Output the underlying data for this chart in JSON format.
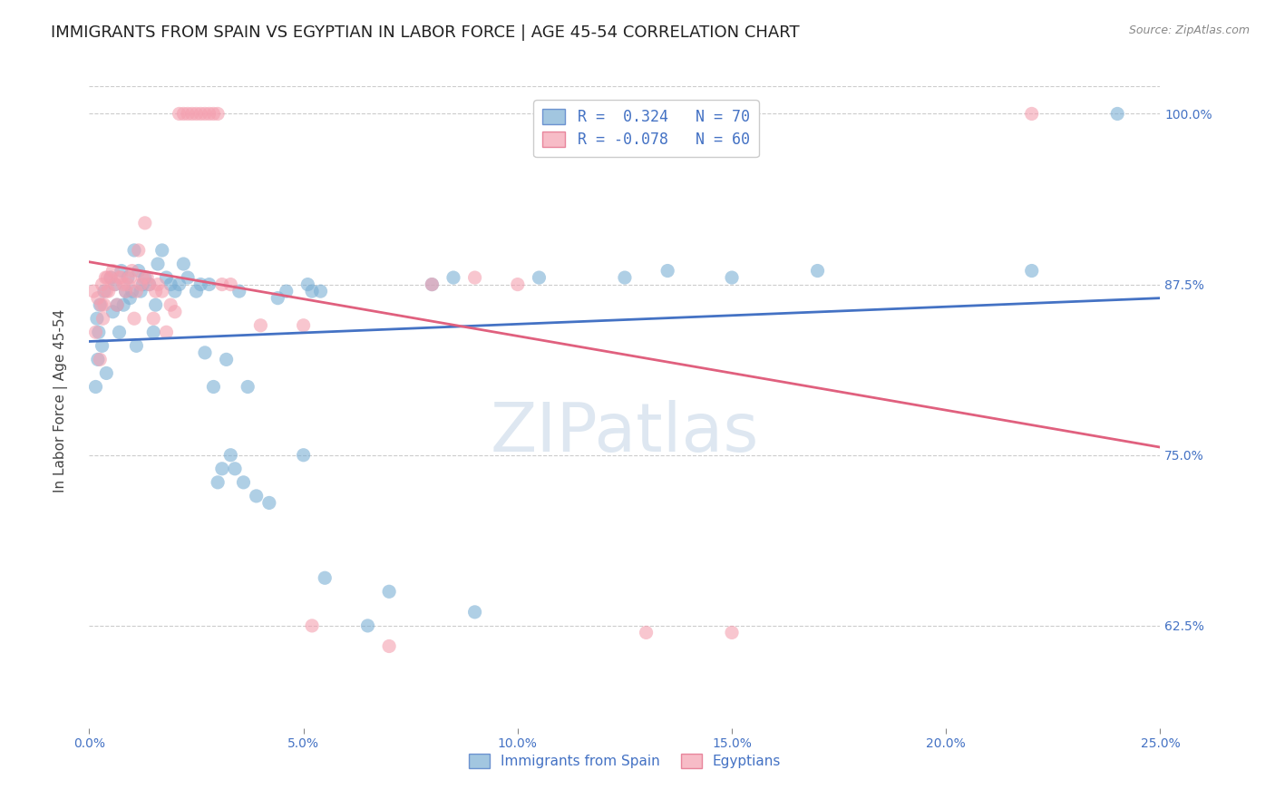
{
  "title": "IMMIGRANTS FROM SPAIN VS EGYPTIAN IN LABOR FORCE | AGE 45-54 CORRELATION CHART",
  "source": "Source: ZipAtlas.com",
  "ylabel": "In Labor Force | Age 45-54",
  "x_tick_labels": [
    "0.0%",
    "5.0%",
    "10.0%",
    "15.0%",
    "20.0%",
    "25.0%"
  ],
  "x_tick_vals": [
    0.0,
    5.0,
    10.0,
    15.0,
    20.0,
    25.0
  ],
  "y_tick_labels": [
    "62.5%",
    "75.0%",
    "87.5%",
    "100.0%"
  ],
  "y_tick_vals": [
    62.5,
    75.0,
    87.5,
    100.0
  ],
  "xlim": [
    0.0,
    25.0
  ],
  "ylim": [
    55.0,
    103.0
  ],
  "blue_scatter": [
    [
      0.15,
      80.0
    ],
    [
      0.2,
      82.0
    ],
    [
      0.22,
      84.0
    ],
    [
      0.18,
      85.0
    ],
    [
      0.25,
      86.0
    ],
    [
      0.3,
      83.0
    ],
    [
      0.35,
      87.0
    ],
    [
      0.4,
      81.0
    ],
    [
      0.5,
      88.0
    ],
    [
      0.55,
      85.5
    ],
    [
      0.6,
      87.5
    ],
    [
      0.65,
      86.0
    ],
    [
      0.7,
      84.0
    ],
    [
      0.75,
      88.5
    ],
    [
      0.8,
      86.0
    ],
    [
      0.85,
      87.0
    ],
    [
      0.9,
      88.0
    ],
    [
      0.95,
      86.5
    ],
    [
      1.0,
      87.0
    ],
    [
      1.05,
      90.0
    ],
    [
      1.1,
      83.0
    ],
    [
      1.15,
      88.5
    ],
    [
      1.2,
      87.0
    ],
    [
      1.25,
      87.5
    ],
    [
      1.3,
      88.0
    ],
    [
      1.4,
      87.5
    ],
    [
      1.5,
      84.0
    ],
    [
      1.55,
      86.0
    ],
    [
      1.6,
      89.0
    ],
    [
      1.7,
      90.0
    ],
    [
      1.8,
      88.0
    ],
    [
      1.9,
      87.5
    ],
    [
      2.0,
      87.0
    ],
    [
      2.1,
      87.5
    ],
    [
      2.2,
      89.0
    ],
    [
      2.3,
      88.0
    ],
    [
      2.5,
      87.0
    ],
    [
      2.6,
      87.5
    ],
    [
      2.7,
      82.5
    ],
    [
      2.8,
      87.5
    ],
    [
      2.9,
      80.0
    ],
    [
      3.0,
      73.0
    ],
    [
      3.1,
      74.0
    ],
    [
      3.2,
      82.0
    ],
    [
      3.3,
      75.0
    ],
    [
      3.4,
      74.0
    ],
    [
      3.5,
      87.0
    ],
    [
      3.6,
      73.0
    ],
    [
      3.7,
      80.0
    ],
    [
      3.9,
      72.0
    ],
    [
      4.2,
      71.5
    ],
    [
      4.4,
      86.5
    ],
    [
      4.6,
      87.0
    ],
    [
      5.0,
      75.0
    ],
    [
      5.1,
      87.5
    ],
    [
      5.2,
      87.0
    ],
    [
      5.4,
      87.0
    ],
    [
      5.5,
      66.0
    ],
    [
      6.5,
      62.5
    ],
    [
      7.0,
      65.0
    ],
    [
      8.0,
      87.5
    ],
    [
      8.5,
      88.0
    ],
    [
      9.0,
      63.5
    ],
    [
      10.5,
      88.0
    ],
    [
      12.5,
      88.0
    ],
    [
      13.5,
      88.5
    ],
    [
      15.0,
      88.0
    ],
    [
      17.0,
      88.5
    ],
    [
      22.0,
      88.5
    ],
    [
      24.0,
      100.0
    ]
  ],
  "pink_scatter": [
    [
      0.1,
      87.0
    ],
    [
      0.15,
      84.0
    ],
    [
      0.2,
      86.5
    ],
    [
      0.25,
      82.0
    ],
    [
      0.28,
      86.0
    ],
    [
      0.3,
      87.5
    ],
    [
      0.32,
      85.0
    ],
    [
      0.35,
      86.0
    ],
    [
      0.38,
      88.0
    ],
    [
      0.4,
      87.0
    ],
    [
      0.42,
      88.0
    ],
    [
      0.45,
      87.0
    ],
    [
      0.5,
      88.0
    ],
    [
      0.55,
      88.5
    ],
    [
      0.6,
      87.5
    ],
    [
      0.65,
      86.0
    ],
    [
      0.7,
      88.0
    ],
    [
      0.75,
      88.0
    ],
    [
      0.8,
      87.5
    ],
    [
      0.85,
      87.0
    ],
    [
      0.9,
      87.5
    ],
    [
      0.95,
      88.0
    ],
    [
      1.0,
      88.5
    ],
    [
      1.05,
      85.0
    ],
    [
      1.1,
      87.0
    ],
    [
      1.15,
      90.0
    ],
    [
      1.2,
      87.5
    ],
    [
      1.25,
      88.0
    ],
    [
      1.3,
      92.0
    ],
    [
      1.35,
      88.0
    ],
    [
      1.4,
      87.5
    ],
    [
      1.5,
      85.0
    ],
    [
      1.55,
      87.0
    ],
    [
      1.6,
      87.5
    ],
    [
      1.7,
      87.0
    ],
    [
      1.8,
      84.0
    ],
    [
      1.9,
      86.0
    ],
    [
      2.0,
      85.5
    ],
    [
      2.1,
      100.0
    ],
    [
      2.2,
      100.0
    ],
    [
      2.3,
      100.0
    ],
    [
      2.4,
      100.0
    ],
    [
      2.5,
      100.0
    ],
    [
      2.6,
      100.0
    ],
    [
      2.7,
      100.0
    ],
    [
      2.8,
      100.0
    ],
    [
      2.9,
      100.0
    ],
    [
      3.0,
      100.0
    ],
    [
      3.1,
      87.5
    ],
    [
      3.3,
      87.5
    ],
    [
      4.0,
      84.5
    ],
    [
      5.0,
      84.5
    ],
    [
      5.2,
      62.5
    ],
    [
      7.0,
      61.0
    ],
    [
      8.0,
      87.5
    ],
    [
      9.0,
      88.0
    ],
    [
      13.0,
      62.0
    ],
    [
      15.0,
      62.0
    ],
    [
      22.0,
      100.0
    ],
    [
      10.0,
      87.5
    ]
  ],
  "blue_line_color": "#4472c4",
  "pink_line_color": "#e0607e",
  "scatter_blue_color": "#7bafd4",
  "scatter_pink_color": "#f4a0b0",
  "watermark": "ZIPatlas",
  "background_color": "#ffffff",
  "grid_color": "#cccccc",
  "axis_label_color": "#4472c4",
  "title_color": "#222222",
  "title_fontsize": 13,
  "axis_fontsize": 11,
  "tick_fontsize": 10
}
